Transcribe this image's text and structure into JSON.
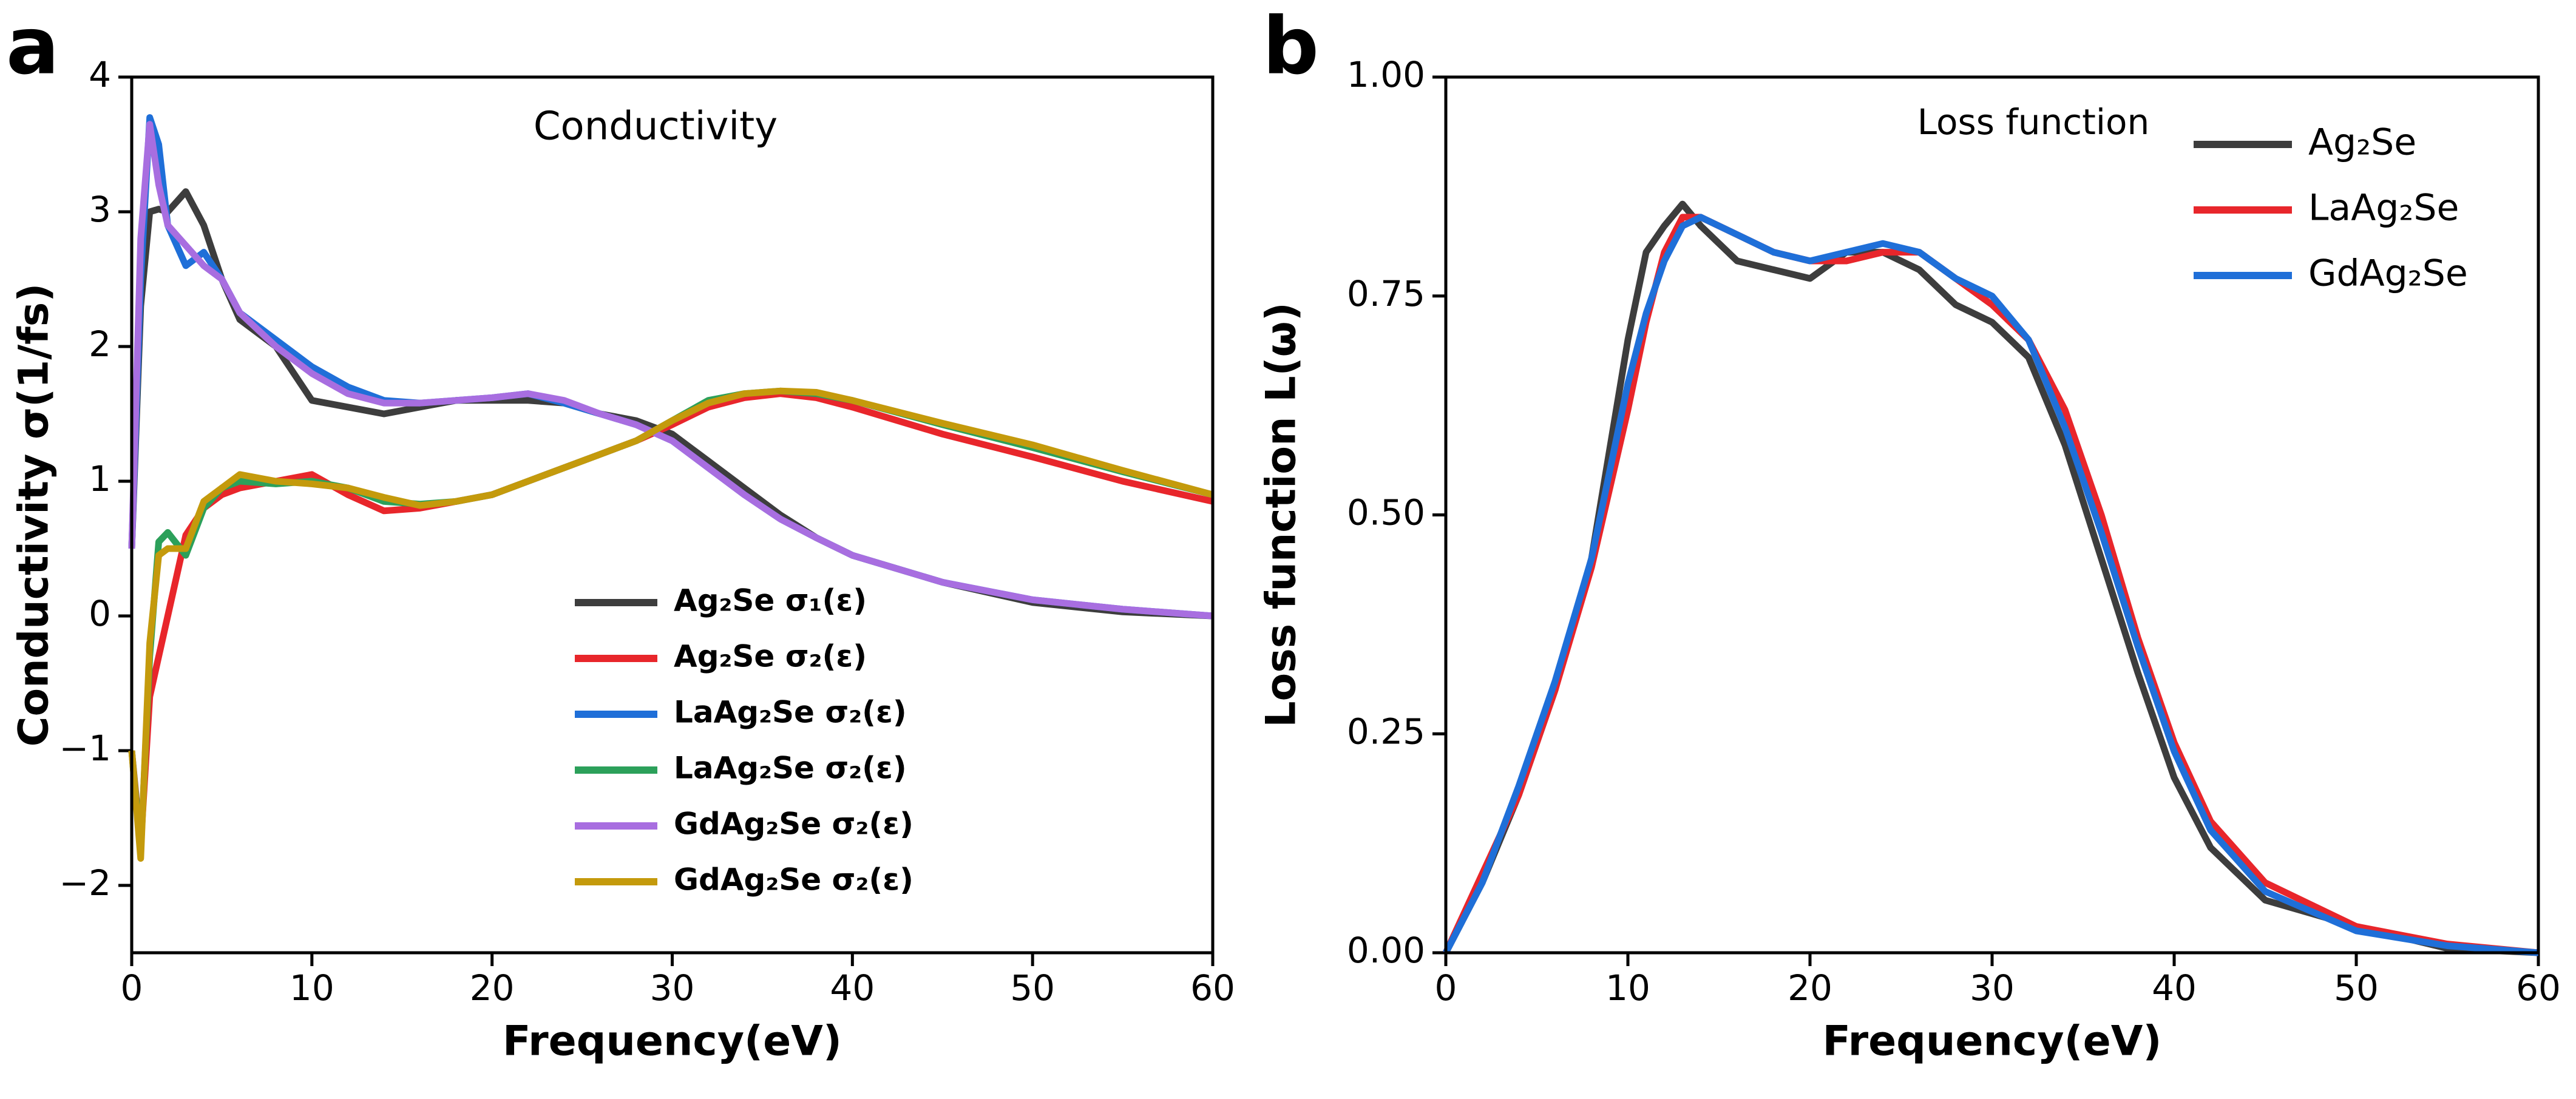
{
  "chart_data": [
    {
      "type": "line",
      "panel_label": "a",
      "title": "Conductivity",
      "title_color": "#e8262b",
      "xlabel": "Frequency(eV)",
      "ylabel": "Conductivity σ(1/fs)",
      "xlim": [
        0,
        60
      ],
      "ylim": [
        -2.5,
        4
      ],
      "xticks": [
        0,
        10,
        20,
        30,
        40,
        50,
        60
      ],
      "yticks": [
        {
          "value": -2,
          "label": "−2"
        },
        {
          "value": -1,
          "label": "−1"
        },
        0,
        1,
        2,
        3,
        4
      ],
      "legend": "lower center",
      "x": [
        0,
        0.5,
        1,
        1.5,
        2,
        3,
        4,
        5,
        6,
        8,
        10,
        12,
        14,
        16,
        18,
        20,
        22,
        24,
        26,
        28,
        30,
        32,
        34,
        36,
        38,
        40,
        45,
        50,
        55,
        60
      ],
      "series": [
        {
          "name": "Ag₂Se σ₁(ε)",
          "color": "#3d3d3d",
          "values": [
            0.5,
            2.3,
            3.0,
            3.02,
            3.0,
            3.15,
            2.9,
            2.5,
            2.2,
            2.0,
            1.6,
            1.55,
            1.5,
            1.55,
            1.6,
            1.6,
            1.6,
            1.58,
            1.5,
            1.45,
            1.35,
            1.15,
            0.95,
            0.75,
            0.58,
            0.45,
            0.25,
            0.1,
            0.03,
            0
          ]
        },
        {
          "name": "Ag₂Se σ₂(ε)",
          "color": "#e8262b",
          "values": [
            -1.0,
            -1.7,
            -0.6,
            -0.3,
            0.0,
            0.6,
            0.8,
            0.9,
            0.95,
            1.0,
            1.05,
            0.9,
            0.78,
            0.8,
            0.85,
            0.9,
            1.0,
            1.1,
            1.2,
            1.3,
            1.42,
            1.55,
            1.62,
            1.65,
            1.62,
            1.55,
            1.35,
            1.18,
            1.0,
            0.85
          ]
        },
        {
          "name": "LaAg₂Se σ₂(ε)",
          "color": "#1f6fd8",
          "values": [
            0.5,
            2.5,
            3.7,
            3.5,
            2.9,
            2.6,
            2.7,
            2.5,
            2.25,
            2.05,
            1.85,
            1.7,
            1.6,
            1.58,
            1.6,
            1.62,
            1.65,
            1.58,
            1.5,
            1.42,
            1.3,
            1.1,
            0.9,
            0.72,
            0.58,
            0.45,
            0.25,
            0.12,
            0.05,
            0
          ]
        },
        {
          "name": "LaAg₂Se σ₂(ε)",
          "color": "#2ca05a",
          "values": [
            -1.0,
            -1.75,
            -0.3,
            0.55,
            0.62,
            0.45,
            0.8,
            0.95,
            1.0,
            0.98,
            1.0,
            0.95,
            0.85,
            0.83,
            0.85,
            0.9,
            1.0,
            1.1,
            1.2,
            1.3,
            1.45,
            1.6,
            1.65,
            1.67,
            1.65,
            1.6,
            1.42,
            1.25,
            1.07,
            0.9
          ]
        },
        {
          "name": "GdAg₂Se σ₂(ε)",
          "color": "#a86ee0",
          "values": [
            0.5,
            2.8,
            3.65,
            3.2,
            2.9,
            2.75,
            2.6,
            2.5,
            2.25,
            2.0,
            1.8,
            1.65,
            1.58,
            1.58,
            1.6,
            1.62,
            1.65,
            1.6,
            1.5,
            1.42,
            1.3,
            1.1,
            0.9,
            0.72,
            0.58,
            0.45,
            0.25,
            0.12,
            0.05,
            0
          ]
        },
        {
          "name": "GdAg₂Se σ₂(ε)",
          "color": "#c49a0c",
          "values": [
            -1.0,
            -1.8,
            -0.2,
            0.45,
            0.5,
            0.5,
            0.85,
            0.95,
            1.05,
            1.0,
            0.98,
            0.95,
            0.88,
            0.82,
            0.85,
            0.9,
            1.0,
            1.1,
            1.2,
            1.3,
            1.45,
            1.58,
            1.65,
            1.67,
            1.66,
            1.6,
            1.43,
            1.27,
            1.08,
            0.9
          ]
        }
      ]
    },
    {
      "type": "line",
      "panel_label": "b",
      "title": "Loss function",
      "title_color": "#000000",
      "xlabel": "Frequency(eV)",
      "ylabel": "Loss function L(ω)",
      "xlim": [
        0,
        60
      ],
      "ylim": [
        0,
        1
      ],
      "xticks": [
        0,
        10,
        20,
        30,
        40,
        50,
        60
      ],
      "yticks": [
        {
          "value": 0,
          "label": "0.00"
        },
        {
          "value": 0.25,
          "label": "0.25"
        },
        {
          "value": 0.5,
          "label": "0.50"
        },
        {
          "value": 0.75,
          "label": "0.75"
        },
        {
          "value": 1,
          "label": "1.00"
        }
      ],
      "legend": "upper right",
      "x": [
        0,
        2,
        4,
        6,
        8,
        10,
        11,
        12,
        13,
        14,
        16,
        18,
        20,
        22,
        24,
        26,
        28,
        30,
        32,
        34,
        36,
        38,
        40,
        42,
        45,
        50,
        55,
        60
      ],
      "series": [
        {
          "name": "Ag₂Se",
          "color": "#3d3d3d",
          "values": [
            0,
            0.08,
            0.18,
            0.3,
            0.45,
            0.7,
            0.8,
            0.83,
            0.855,
            0.83,
            0.79,
            0.78,
            0.77,
            0.8,
            0.8,
            0.78,
            0.74,
            0.72,
            0.68,
            0.58,
            0.45,
            0.32,
            0.2,
            0.12,
            0.06,
            0.03,
            0.005,
            0
          ]
        },
        {
          "name": "LaAg₂Se",
          "color": "#e8262b",
          "values": [
            0,
            0.09,
            0.18,
            0.3,
            0.44,
            0.62,
            0.72,
            0.8,
            0.84,
            0.84,
            0.82,
            0.8,
            0.79,
            0.79,
            0.8,
            0.8,
            0.77,
            0.74,
            0.7,
            0.62,
            0.5,
            0.36,
            0.24,
            0.15,
            0.08,
            0.03,
            0.01,
            0
          ]
        },
        {
          "name": "GdAg₂Se",
          "color": "#1f6fd8",
          "values": [
            0,
            0.08,
            0.19,
            0.31,
            0.45,
            0.65,
            0.73,
            0.79,
            0.83,
            0.84,
            0.82,
            0.8,
            0.79,
            0.8,
            0.81,
            0.8,
            0.77,
            0.75,
            0.7,
            0.6,
            0.48,
            0.35,
            0.23,
            0.14,
            0.07,
            0.025,
            0.008,
            0
          ]
        }
      ]
    }
  ]
}
